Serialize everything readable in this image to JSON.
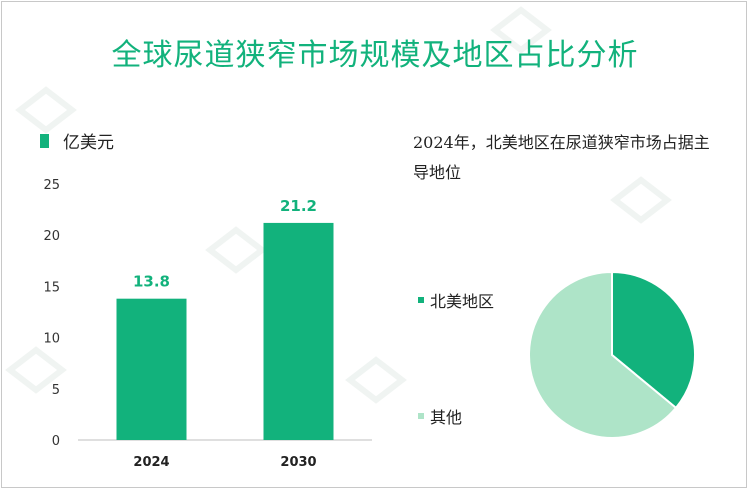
{
  "title": "全球尿道狭窄市场规模及地区占比分析",
  "chart_data": [
    {
      "type": "bar",
      "categories": [
        "2024",
        "2030"
      ],
      "values": [
        13.8,
        21.2
      ],
      "legend_label": "亿美元",
      "legend_placement": "top-left",
      "ylim": [
        0,
        25
      ],
      "yticks": [
        "0",
        "5",
        "10",
        "15",
        "20",
        "25"
      ],
      "data_labels": [
        "13.8",
        "21.2"
      ],
      "colors": {
        "bar": "#12b27c",
        "label": "#12b27c"
      },
      "grid": false
    },
    {
      "type": "pie",
      "title": "2024年，北美地区在尿道狭窄市场占据主导地位",
      "labels": [
        "北美地区",
        "其他"
      ],
      "values": [
        36,
        64
      ],
      "colors": [
        "#12b27c",
        "#aee4c8"
      ],
      "legend_placement": "left"
    }
  ]
}
